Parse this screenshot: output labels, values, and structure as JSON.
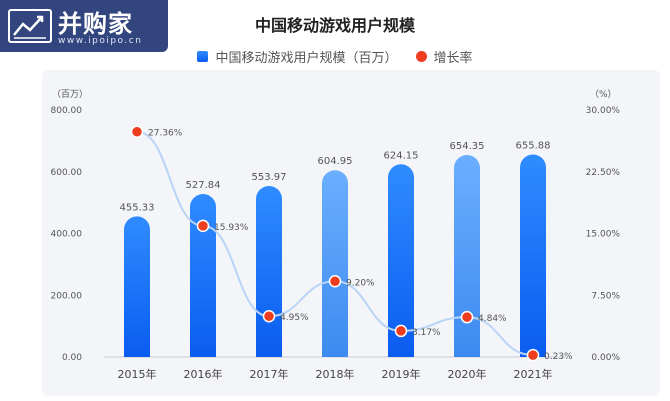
{
  "brand": {
    "name": "并购家",
    "url": "www.ipoipo.cn"
  },
  "chart_data": {
    "type": "bar",
    "title": "中国移动游戏用户规模",
    "categories": [
      "2015年",
      "2016年",
      "2017年",
      "2018年",
      "2019年",
      "2020年",
      "2021年"
    ],
    "series": [
      {
        "name": "中国移动游戏用户规模（百万）",
        "type": "bar",
        "axis": "left",
        "values": [
          455.33,
          527.84,
          553.97,
          604.95,
          624.15,
          654.35,
          655.88
        ],
        "labels": [
          "455.33",
          "527.84",
          "553.97",
          "604.95",
          "624.15",
          "654.35",
          "655.88"
        ]
      },
      {
        "name": "增长率",
        "type": "line",
        "axis": "right",
        "values": [
          27.36,
          15.93,
          4.95,
          9.2,
          3.17,
          4.84,
          0.23
        ],
        "labels": [
          "27.36%",
          "15.93%",
          "4.95%",
          "9.20%",
          "3.17%",
          "4.84%",
          "0.23%"
        ]
      }
    ],
    "y_left": {
      "unit": "（百万）",
      "range": [
        0,
        800
      ],
      "ticks": [
        "0.00",
        "200.00",
        "400.00",
        "600.00",
        "800.00"
      ]
    },
    "y_right": {
      "unit": "（%）",
      "range": [
        0,
        30
      ],
      "ticks": [
        "0.00%",
        "7.50%",
        "15.00%",
        "22.50%",
        "30.00%"
      ]
    },
    "grid": false,
    "legend_position": "top-center",
    "colors": {
      "bar_top": "#2f8cff",
      "bar_bottom": "#0a5cf0",
      "bar_light_top": "#6aaeff",
      "bar_light_bottom": "#3d8bf0",
      "line": "#b9d4f7",
      "point": "#ee3c1f",
      "axis": "#c9cfd8",
      "text": "#555555"
    }
  }
}
